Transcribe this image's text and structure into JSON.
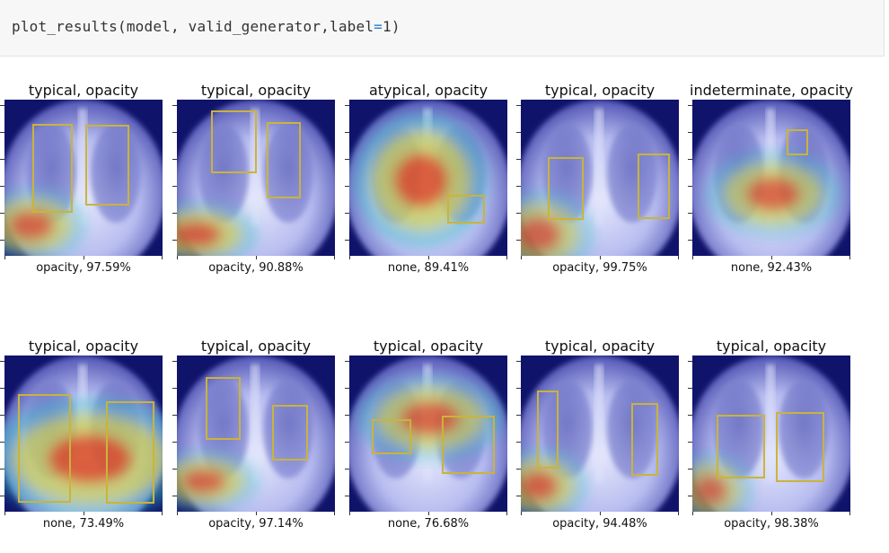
{
  "code": {
    "func": "plot_results",
    "args": "model, valid_generator,label",
    "op": "=",
    "value": "1",
    "close": ")"
  },
  "panels": [
    {
      "title": "typical, opacity",
      "label": "opacity, 97.59%"
    },
    {
      "title": "typical, opacity",
      "label": "opacity, 90.88%"
    },
    {
      "title": "atypical, opacity",
      "label": "none, 89.41%"
    },
    {
      "title": "typical, opacity",
      "label": "opacity, 99.75%"
    },
    {
      "title": "indeterminate, opacity",
      "label": "none, 92.43%"
    },
    {
      "title": "typical, opacity",
      "label": "none, 73.49%"
    },
    {
      "title": "typical, opacity",
      "label": "opacity, 97.14%"
    },
    {
      "title": "typical, opacity",
      "label": "none, 76.68%"
    },
    {
      "title": "typical, opacity",
      "label": "opacity, 94.48%"
    },
    {
      "title": "typical, opacity",
      "label": "opacity, 98.38%"
    }
  ],
  "colors": {
    "box": "#c9b43a",
    "xray_bg": "#10136a",
    "heat_hot": "#e02020",
    "heat_warm": "#f4d23a",
    "heat_cool": "#34c3c8"
  }
}
